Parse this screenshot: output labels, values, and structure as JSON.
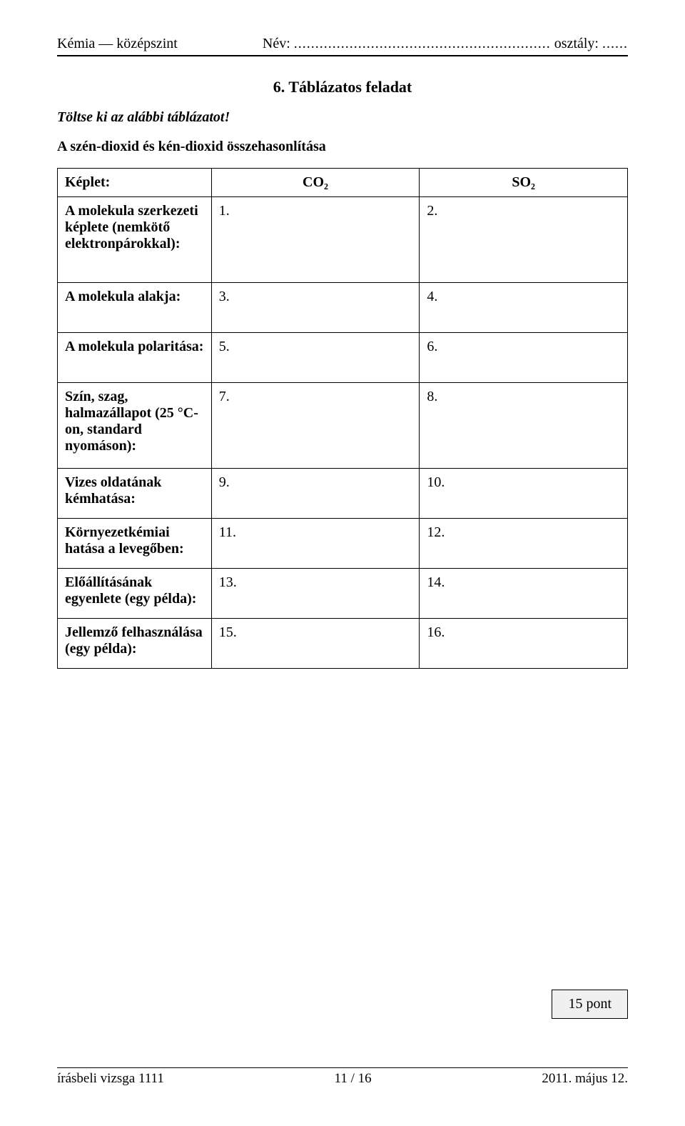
{
  "header": {
    "subject": "Kémia — középszint",
    "name_label": "Név:",
    "name_dots": "............................................................",
    "class_label": "osztály:",
    "class_dots": "......"
  },
  "task": {
    "title": "6. Táblázatos feladat",
    "instruction": "Töltse ki az alábbi táblázatot!",
    "subtitle": "A szén-dioxid és kén-dioxid összehasonlítása"
  },
  "table": {
    "row_formula_label": "Képlet:",
    "col1_header": "CO₂",
    "col2_header": "SO₂",
    "rows": [
      {
        "label_html": "A molekula szerkezeti képlete (nemkötő elektronpárokkal):",
        "c1": "1.",
        "c2": "2."
      },
      {
        "label_html": "A molekula alakja:",
        "c1": "3.",
        "c2": "4."
      },
      {
        "label_html": "A molekula polaritása:",
        "c1": "5.",
        "c2": "6."
      },
      {
        "label_html": "Szín, szag, halmazállapot (25 °C-on, standard nyomáson):",
        "c1": "7.",
        "c2": "8."
      },
      {
        "label_html": "Vizes oldatának kémhatása:",
        "c1": "9.",
        "c2": "10."
      },
      {
        "label_html": "Környezetkémiai hatása a levegőben:",
        "c1": "11.",
        "c2": "12."
      },
      {
        "label_html": "Előállításának egyenlete (egy példa):",
        "c1": "13.",
        "c2": "14."
      },
      {
        "label_html": "Jellemző felhasználása (egy példa):",
        "c1": "15.",
        "c2": "16."
      }
    ]
  },
  "score": {
    "text": "15 pont"
  },
  "footer": {
    "left": "írásbeli vizsga 1111",
    "center": "11 / 16",
    "right": "2011. május 12."
  },
  "colors": {
    "text": "#000000",
    "background": "#ffffff",
    "scorebox_bg": "#f0f0f0",
    "border": "#000000"
  }
}
